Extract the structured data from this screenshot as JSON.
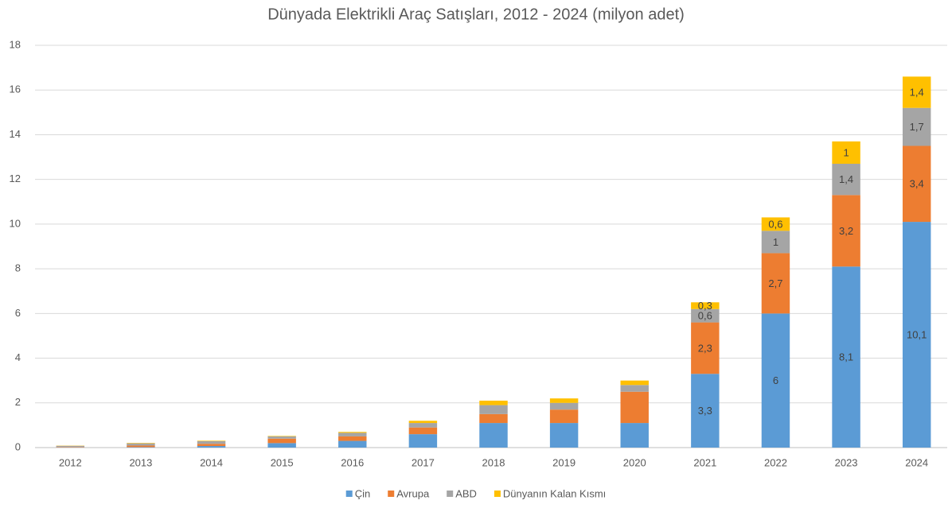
{
  "chart_data": {
    "type": "stacked_bar",
    "title": "Dünyada Elektrikli Araç Satışları, 2012 - 2024 (milyon adet)",
    "categories": [
      "2012",
      "2013",
      "2014",
      "2015",
      "2016",
      "2017",
      "2018",
      "2019",
      "2020",
      "2021",
      "2022",
      "2023",
      "2024"
    ],
    "series": [
      {
        "name": "Çin",
        "color": "#5b9bd5",
        "values": [
          0.01,
          0.02,
          0.07,
          0.2,
          0.3,
          0.6,
          1.1,
          1.1,
          1.1,
          3.3,
          6,
          8.1,
          10.1
        ],
        "value_labels": [
          null,
          null,
          null,
          null,
          null,
          null,
          null,
          null,
          null,
          "3,3",
          "6",
          "8,1",
          "10,1"
        ]
      },
      {
        "name": "Avrupa",
        "color": "#ed7d31",
        "values": [
          0.02,
          0.07,
          0.1,
          0.2,
          0.2,
          0.3,
          0.4,
          0.6,
          1.4,
          2.3,
          2.7,
          3.2,
          3.4
        ],
        "value_labels": [
          null,
          null,
          null,
          null,
          null,
          null,
          null,
          null,
          null,
          "2,3",
          "2,7",
          "3,2",
          "3,4"
        ]
      },
      {
        "name": "ABD",
        "color": "#a5a5a5",
        "values": [
          0.05,
          0.1,
          0.12,
          0.1,
          0.16,
          0.2,
          0.4,
          0.3,
          0.3,
          0.6,
          1,
          1.4,
          1.7
        ],
        "value_labels": [
          null,
          null,
          null,
          null,
          null,
          null,
          null,
          null,
          null,
          "0,6",
          "1",
          "1,4",
          "1,7"
        ]
      },
      {
        "name": "Dünyanın Kalan Kısmı",
        "color": "#ffc000",
        "values": [
          0.01,
          0.02,
          0.02,
          0.02,
          0.04,
          0.1,
          0.2,
          0.2,
          0.2,
          0.3,
          0.6,
          1,
          1.4
        ],
        "value_labels": [
          null,
          null,
          null,
          null,
          null,
          null,
          null,
          null,
          null,
          "0,3",
          "0,6",
          "1",
          "1,4"
        ]
      }
    ],
    "ylim": [
      0,
      18
    ],
    "yticks": [
      0,
      2,
      4,
      6,
      8,
      10,
      12,
      14,
      16,
      18
    ],
    "grid": true,
    "legend": "bottom"
  }
}
